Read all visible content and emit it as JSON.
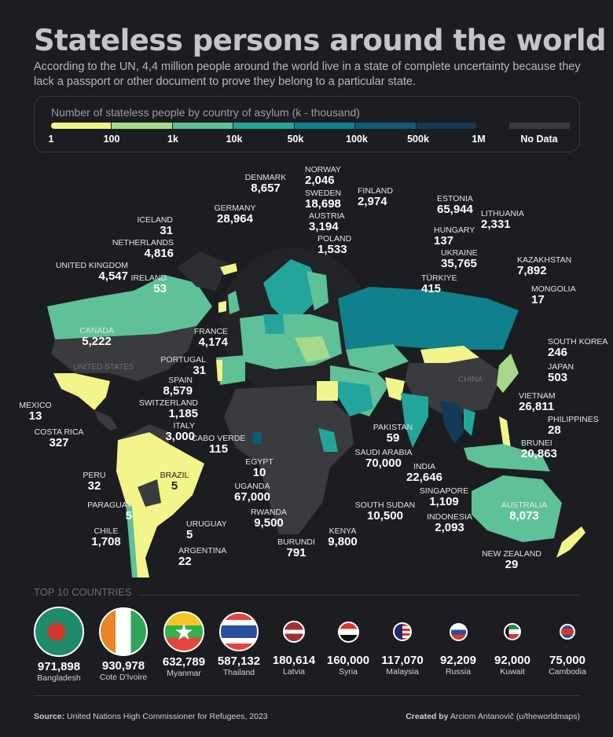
{
  "title": "Stateless persons around the world",
  "subtitle": "According to the UN, 4,4 million people around the world live in a state of complete uncertainty because they lack a passport or other document to prove they belong to a particular state.",
  "legend": {
    "title": "Number of stateless people by country of asylum (k - thousand)",
    "ticks": [
      "1",
      "100",
      "1k",
      "10k",
      "50k",
      "100k",
      "500k",
      "1M"
    ],
    "no_data": "No Data",
    "colors": [
      "#f3f48a",
      "#a6da8a",
      "#5fc197",
      "#24a59b",
      "#0f808c",
      "#0b5c74",
      "#143a58"
    ],
    "no_data_color": "#3a3b3e"
  },
  "map": {
    "grey_labels": {
      "us": "UNITED STATES",
      "china": "CHINA"
    },
    "countries": {
      "denmark": {
        "name": "DENMARK",
        "value": "8,657"
      },
      "norway": {
        "name": "NORWAY",
        "value": "2,046"
      },
      "sweden": {
        "name": "SWEDEN",
        "value": "18,698"
      },
      "austria": {
        "name": "AUSTRIA",
        "value": "3,194"
      },
      "poland": {
        "name": "POLAND",
        "value": "1,533"
      },
      "finland": {
        "name": "FINLAND",
        "value": "2,974"
      },
      "estonia": {
        "name": "ESTONIA",
        "value": "65,944"
      },
      "lithuania": {
        "name": "LITHUANIA",
        "value": "2,331"
      },
      "hungary": {
        "name": "HUNGARY",
        "value": "137"
      },
      "ukraine": {
        "name": "UKRAINE",
        "value": "35,765"
      },
      "turkiye": {
        "name": "TÜRKIYE",
        "value": "415"
      },
      "kazakhstan": {
        "name": "KAZAKHSTAN",
        "value": "7,892"
      },
      "mongolia": {
        "name": "MONGOLIA",
        "value": "17"
      },
      "south_korea": {
        "name": "SOUTH KOREA",
        "value": "246"
      },
      "japan": {
        "name": "JAPAN",
        "value": "503"
      },
      "vietnam": {
        "name": "VIETNAM",
        "value": "26,811"
      },
      "philippines": {
        "name": "PHILIPPINES",
        "value": "28"
      },
      "brunei": {
        "name": "BRUNEI",
        "value": "20,863"
      },
      "singapore": {
        "name": "SINGAPORE",
        "value": "1,109"
      },
      "indonesia": {
        "name": "INDONESIA",
        "value": "2,093"
      },
      "australia": {
        "name": "AUSTRALIA",
        "value": "8,073"
      },
      "new_zealand": {
        "name": "NEW ZEALAND",
        "value": "29"
      },
      "germany": {
        "name": "GERMANY",
        "value": "28,964"
      },
      "iceland": {
        "name": "ICELAND",
        "value": "31"
      },
      "netherlands": {
        "name": "NETHERLANDS",
        "value": "4,816"
      },
      "uk": {
        "name": "UNITED KINGDOM",
        "value": "4,547"
      },
      "ireland": {
        "name": "IRELAND",
        "value": "53"
      },
      "canada": {
        "name": "CANADA",
        "value": "5,222"
      },
      "france": {
        "name": "FRANCE",
        "value": "4,174"
      },
      "portugal": {
        "name": "PORTUGAL",
        "value": "31"
      },
      "spain": {
        "name": "SPAIN",
        "value": "8,579"
      },
      "switzerland": {
        "name": "SWITZERLAND",
        "value": "1,185"
      },
      "italy": {
        "name": "ITALY",
        "value": "3,000"
      },
      "cabo_verde": {
        "name": "CABO VERDE",
        "value": "115"
      },
      "egypt": {
        "name": "EGYPT",
        "value": "10"
      },
      "mexico": {
        "name": "MEXICO",
        "value": "13"
      },
      "costa_rica": {
        "name": "COSTA RICA",
        "value": "327"
      },
      "peru": {
        "name": "PERU",
        "value": "32"
      },
      "brazil": {
        "name": "BRAZIL",
        "value": "5"
      },
      "paraguay": {
        "name": "PARAGUAY",
        "value": "5"
      },
      "chile": {
        "name": "CHILE",
        "value": "1,708"
      },
      "uruguay": {
        "name": "URUGUAY",
        "value": "5"
      },
      "argentina": {
        "name": "ARGENTINA",
        "value": "22"
      },
      "uganda": {
        "name": "UGANDA",
        "value": "67,000"
      },
      "rwanda": {
        "name": "RWANDA",
        "value": "9,500"
      },
      "burundi": {
        "name": "BURUNDI",
        "value": "791"
      },
      "kenya": {
        "name": "KENYA",
        "value": "9,800"
      },
      "south_sudan": {
        "name": "SOUTH SUDAN",
        "value": "10,500"
      },
      "saudi_arabia": {
        "name": "SAUDI ARABIA",
        "value": "70,000"
      },
      "india": {
        "name": "INDIA",
        "value": "22,646"
      },
      "pakistan": {
        "name": "PAKISTAN",
        "value": "59"
      }
    }
  },
  "top10": {
    "heading": "TOP 10 COUNTRIES",
    "items": [
      {
        "value": "971,898",
        "name": "Bangladesh"
      },
      {
        "value": "930,978",
        "name": "Cote D'Ivoire"
      },
      {
        "value": "632,789",
        "name": "Myanmar"
      },
      {
        "value": "587,132",
        "name": "Thailand"
      },
      {
        "value": "180,614",
        "name": "Latvia"
      },
      {
        "value": "160,000",
        "name": "Syria"
      },
      {
        "value": "117,070",
        "name": "Malaysia"
      },
      {
        "value": "92,209",
        "name": "Russia"
      },
      {
        "value": "92,000",
        "name": "Kuwait"
      },
      {
        "value": "75,000",
        "name": "Cambodia"
      }
    ]
  },
  "footer": {
    "source_label": "Source:",
    "source": "United Nations High Commissioner for Refugees, 2023",
    "created_label": "Created by",
    "created": "Arciom Antanovič (u/theworldmaps)"
  }
}
